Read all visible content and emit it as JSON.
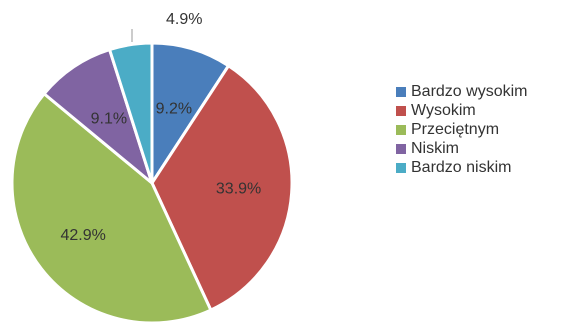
{
  "chart_data": {
    "type": "pie",
    "slices": [
      {
        "name": "Bardzo wysokim",
        "label": "9.2%",
        "value": 9.2,
        "color": "#4a7ebb"
      },
      {
        "name": "Wysokim",
        "label": "33.9%",
        "value": 33.9,
        "color": "#c0504d"
      },
      {
        "name": "Przeciętnym",
        "label": "42.9%",
        "value": 42.9,
        "color": "#9bbb59"
      },
      {
        "name": "Niskim",
        "label": "9.1%",
        "value": 9.1,
        "color": "#8064a2"
      },
      {
        "name": "Bardzo niskim",
        "label": "4.9%",
        "value": 4.9,
        "color": "#4bacc6"
      }
    ],
    "legend_position": "right"
  }
}
